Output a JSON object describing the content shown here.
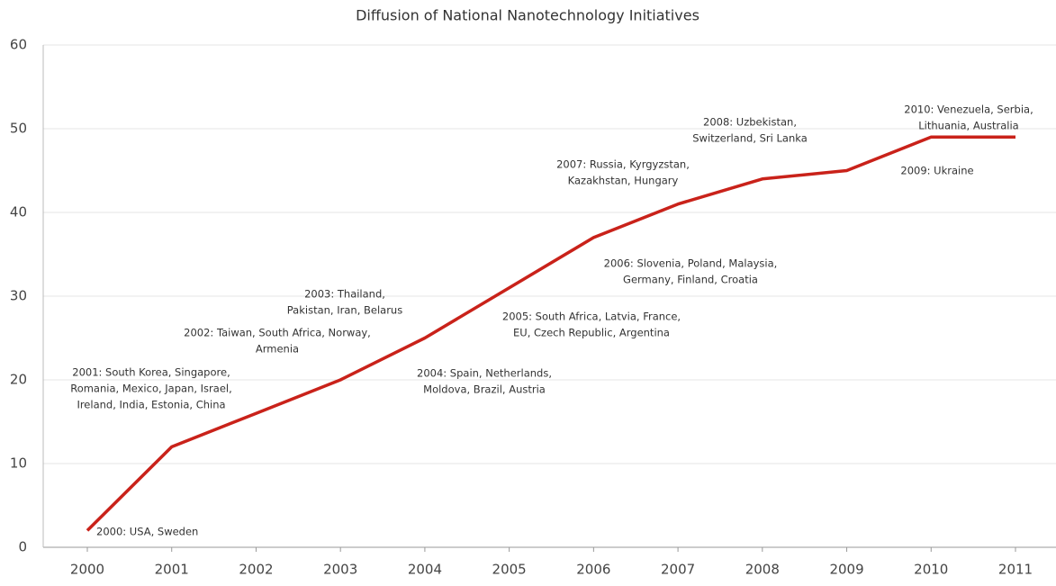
{
  "chart_data": {
    "type": "line",
    "title": "Diffusion of National Nanotechnology Initiatives",
    "categories": [
      "2000",
      "2001",
      "2002",
      "2003",
      "2004",
      "2005",
      "2006",
      "2007",
      "2008",
      "2009",
      "2010",
      "2011"
    ],
    "series": [
      {
        "name": "National Nanotechnology Initiatives",
        "color": "#c9221a",
        "values": [
          2,
          12,
          16,
          20,
          25,
          31,
          37,
          41,
          44,
          45,
          49,
          49
        ]
      }
    ],
    "ylim": [
      0,
      60
    ],
    "yticks": [
      0,
      10,
      20,
      30,
      40,
      50,
      60
    ],
    "grid": true,
    "annotations": [
      [
        "2000: USA, Sweden"
      ],
      [
        "2001: South Korea, Singapore,",
        "Romania, Mexico, Japan, Israel,",
        "Ireland, India, Estonia, China"
      ],
      [
        "2002: Taiwan, South Africa, Norway,",
        "Armenia"
      ],
      [
        "2003: Thailand,",
        "Pakistan, Iran, Belarus"
      ],
      [
        "2004: Spain, Netherlands,",
        "Moldova, Brazil, Austria"
      ],
      [
        "2005: South Africa, Latvia, France,",
        "EU, Czech Republic, Argentina"
      ],
      [
        "2006: Slovenia, Poland, Malaysia,",
        "Germany, Finland, Croatia"
      ],
      [
        "2007: Russia, Kyrgyzstan,",
        "Kazakhstan, Hungary"
      ],
      [
        "2008: Uzbekistan,",
        "Switzerland, Sri Lanka"
      ],
      [
        "2009: Ukraine"
      ],
      [
        "2010: Venezuela, Serbia,",
        "Lithuania, Australia"
      ]
    ]
  }
}
